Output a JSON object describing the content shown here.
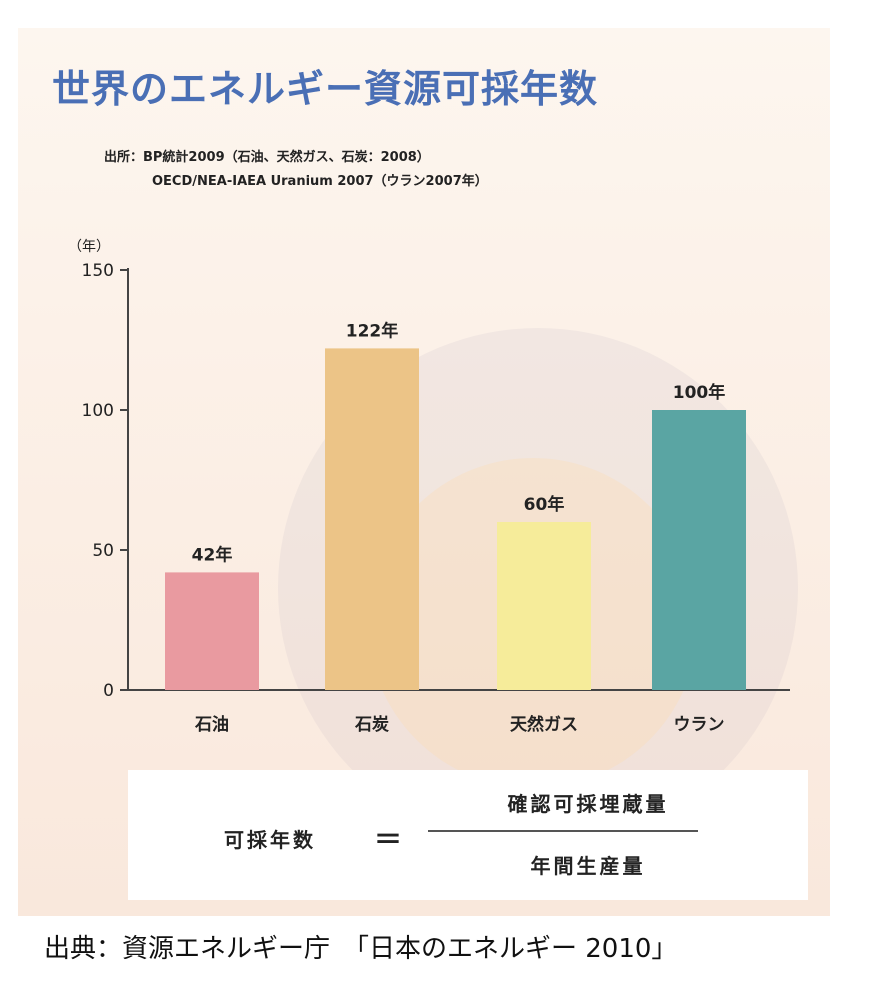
{
  "title": "世界のエネルギー資源可採年数",
  "source_line1": "出所：BP統計2009（石油、天然ガス、石炭：2008）",
  "source_line2": "OECD/NEA-IAEA Uranium 2007（ウラン2007年）",
  "formula": {
    "lhs": "可採年数",
    "equals": "＝",
    "numerator": "確認可採埋蔵量",
    "denominator": "年間生産量"
  },
  "footer": "出典：資源エネルギー庁　「日本のエネルギー 2010」",
  "chart_data": {
    "type": "bar",
    "ylabel": "（年）",
    "ylim": [
      0,
      150
    ],
    "yticks": [
      0,
      50,
      100,
      150
    ],
    "categories": [
      "石油",
      "石炭",
      "天然ガス",
      "ウラン"
    ],
    "values": [
      42,
      122,
      60,
      100
    ],
    "data_labels": [
      "42年",
      "122年",
      "60年",
      "100年"
    ],
    "colors": [
      "#e99aa0",
      "#ecc487",
      "#f6ec9a",
      "#5aa5a3"
    ]
  }
}
